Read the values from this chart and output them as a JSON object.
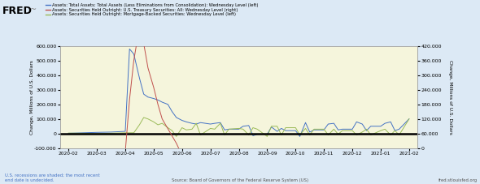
{
  "legend_entries": [
    "Assets: Total Assets: Total Assets (Less Eliminations from Consolidation): Wednesday Level (left)",
    "Assets: Securities Held Outright: U.S. Treasury Securities: All: Wednesday Level (right)",
    "Assets: Securities Held Outright: Mortgage-Backed Securities: Wednesday Level (left)"
  ],
  "legend_colors": [
    "#4472c4",
    "#c0504d",
    "#9bbb59"
  ],
  "x_labels": [
    "2020-02",
    "2020-03",
    "2020-04",
    "2020-05",
    "2020-06",
    "2020-07",
    "2020-08",
    "2020-09",
    "2020-10",
    "2020-11",
    "2020-12",
    "2021-01",
    "2021-02"
  ],
  "ylabel_left": "Change, Millions of U.S. Dollars",
  "ylabel_right": "Change, Millions of U.S. Dollars",
  "ylim_left": [
    -100000,
    600000
  ],
  "ylim_right": [
    0,
    420000
  ],
  "yticks_left": [
    -100000,
    0,
    100000,
    200000,
    300000,
    400000,
    500000,
    600000
  ],
  "yticks_right": [
    0,
    60000,
    120000,
    180000,
    240000,
    300000,
    360000,
    420000
  ],
  "source_text": "Source: Board of Governors of the Federal Reserve System (US)",
  "fred_url": "fred.stlouisfed.org",
  "recession_note": "U.S. recessions are shaded; the most recent\nend date is undecided.",
  "background_color": "#f5f5dc",
  "outer_bg": "#dce9f5",
  "zero_line_color": "#000000",
  "blue_data_x": [
    0,
    0.5,
    1.0,
    1.5,
    2.0,
    2.15,
    2.3,
    2.5,
    2.65,
    2.8,
    3.0,
    3.15,
    3.3,
    3.5,
    3.65,
    3.8,
    4.0,
    4.15,
    4.35,
    4.5,
    4.65,
    5.0,
    5.15,
    5.35,
    5.5,
    5.65,
    6.0,
    6.15,
    6.35,
    6.5,
    6.65,
    7.0,
    7.15,
    7.35,
    7.5,
    7.65,
    8.0,
    8.15,
    8.35,
    8.5,
    8.65,
    9.0,
    9.15,
    9.35,
    9.5,
    9.65,
    10.0,
    10.15,
    10.35,
    10.5,
    10.65,
    11.0,
    11.15,
    11.35,
    11.5,
    11.65,
    12.0
  ],
  "blue_data_y": [
    2000,
    5000,
    8000,
    10000,
    15000,
    580000,
    545000,
    380000,
    270000,
    250000,
    240000,
    230000,
    215000,
    200000,
    150000,
    110000,
    90000,
    80000,
    70000,
    65000,
    75000,
    65000,
    70000,
    75000,
    25000,
    30000,
    30000,
    50000,
    55000,
    -15000,
    -5000,
    -5000,
    45000,
    15000,
    35000,
    20000,
    20000,
    -20000,
    75000,
    10000,
    25000,
    25000,
    65000,
    70000,
    25000,
    30000,
    30000,
    80000,
    65000,
    20000,
    50000,
    50000,
    70000,
    80000,
    20000,
    30000,
    100000
  ],
  "red_data_x": [
    0,
    0.5,
    1.0,
    1.5,
    2.0,
    2.15,
    2.3,
    2.5,
    2.65,
    2.8,
    3.0,
    3.15,
    3.3,
    3.5,
    3.65,
    3.8,
    4.0,
    4.15,
    4.35,
    4.5,
    4.65,
    5.0,
    5.15,
    5.35,
    5.5,
    5.65,
    6.0,
    6.15,
    6.35,
    6.5,
    6.65,
    7.0,
    7.15,
    7.35,
    7.5,
    7.65,
    8.0,
    8.15,
    8.35,
    8.5,
    8.65,
    9.0,
    9.15,
    9.35,
    9.5,
    9.65,
    10.0,
    10.15,
    10.35,
    10.5,
    10.65,
    11.0,
    11.15,
    11.35,
    11.5,
    11.65,
    12.0
  ],
  "red_data_y": [
    -5000,
    -8000,
    -10000,
    -12000,
    -15000,
    200000,
    360000,
    500000,
    430000,
    330000,
    250000,
    180000,
    120000,
    80000,
    50000,
    20000,
    -30000,
    -55000,
    -65000,
    -70000,
    -70000,
    -75000,
    -80000,
    -90000,
    -85000,
    -85000,
    -80000,
    -82000,
    -80000,
    -80000,
    -80000,
    -78000,
    -80000,
    -80000,
    -78000,
    -80000,
    -80000,
    -75000,
    -80000,
    -78000,
    -80000,
    -75000,
    -80000,
    -75000,
    -80000,
    -78000,
    -75000,
    -78000,
    -75000,
    -80000,
    -78000,
    -75000,
    -78000,
    -75000,
    -80000,
    -78000,
    -75000
  ],
  "green_data_x": [
    0,
    0.5,
    1.0,
    1.5,
    2.0,
    2.15,
    2.3,
    2.5,
    2.65,
    2.8,
    3.0,
    3.15,
    3.3,
    3.5,
    3.65,
    3.8,
    4.0,
    4.15,
    4.35,
    4.5,
    4.65,
    5.0,
    5.15,
    5.35,
    5.5,
    5.65,
    6.0,
    6.15,
    6.35,
    6.5,
    6.65,
    7.0,
    7.15,
    7.35,
    7.5,
    7.65,
    8.0,
    8.15,
    8.35,
    8.5,
    8.65,
    9.0,
    9.15,
    9.35,
    9.5,
    9.65,
    10.0,
    10.15,
    10.35,
    10.5,
    10.65,
    11.0,
    11.15,
    11.35,
    11.5,
    11.65,
    12.0
  ],
  "green_data_y": [
    3000,
    2000,
    0,
    2000,
    5000,
    5000,
    5000,
    60000,
    110000,
    100000,
    80000,
    60000,
    70000,
    40000,
    20000,
    -20000,
    40000,
    25000,
    30000,
    70000,
    -10000,
    35000,
    30000,
    70000,
    -10000,
    30000,
    35000,
    30000,
    -10000,
    40000,
    30000,
    -20000,
    50000,
    50000,
    -10000,
    40000,
    40000,
    -10000,
    35000,
    -10000,
    30000,
    30000,
    -10000,
    30000,
    -5000,
    20000,
    20000,
    -10000,
    10000,
    30000,
    -10000,
    20000,
    30000,
    -10000,
    20000,
    -10000,
    100000
  ]
}
